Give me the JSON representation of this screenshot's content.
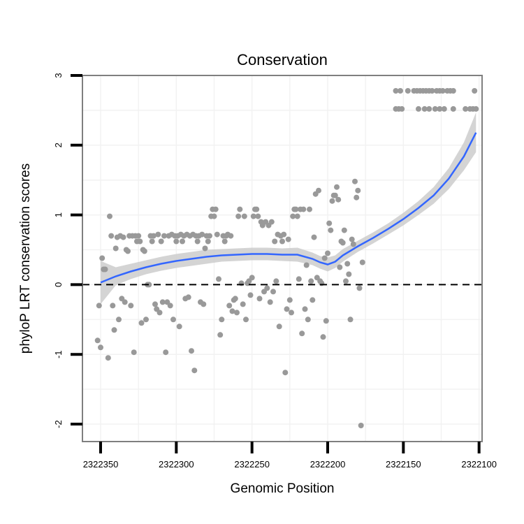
{
  "chart_data": {
    "type": "scatter",
    "title": "Conservation",
    "xlabel": "Genomic Position",
    "ylabel": "phyloP LRT conservation scores",
    "xlim": [
      2322362,
      2322098
    ],
    "ylim": [
      -2.25,
      3.0
    ],
    "x_reversed": true,
    "x_ticks": [
      2322350,
      2322300,
      2322250,
      2322200,
      2322150,
      2322100
    ],
    "x_tick_labels": [
      "2322350",
      "2322300",
      "2322250",
      "2322200",
      "2322150",
      "2322100"
    ],
    "y_ticks": [
      -2,
      -1,
      0,
      1,
      2,
      3
    ],
    "y_tick_labels": [
      "-2",
      "-1",
      "0",
      "1",
      "2",
      "3"
    ],
    "reference_line": {
      "y": 0,
      "style": "dashed"
    },
    "grid": true,
    "colors": {
      "points": "#999999",
      "smooth": "#3366ff",
      "ribbon": "#cccccc",
      "panel_border": "#7f7f7f",
      "grid": "#f2f2f2",
      "reference": "#000000"
    },
    "points": [
      [
        2322352,
        -0.8
      ],
      [
        2322351,
        -0.3
      ],
      [
        2322350,
        -0.9
      ],
      [
        2322349,
        0.38
      ],
      [
        2322348,
        0.22
      ],
      [
        2322347,
        0.22
      ],
      [
        2322345,
        -1.05
      ],
      [
        2322344,
        0.98
      ],
      [
        2322343,
        0.7
      ],
      [
        2322342,
        -0.3
      ],
      [
        2322341,
        -0.65
      ],
      [
        2322340,
        0.52
      ],
      [
        2322339,
        0.68
      ],
      [
        2322338,
        -0.5
      ],
      [
        2322337,
        0.7
      ],
      [
        2322336,
        -0.2
      ],
      [
        2322335,
        0.68
      ],
      [
        2322334,
        -0.25
      ],
      [
        2322333,
        0.5
      ],
      [
        2322332,
        0.48
      ],
      [
        2322331,
        0.7
      ],
      [
        2322330,
        -0.3
      ],
      [
        2322329,
        0.7
      ],
      [
        2322328,
        -0.97
      ],
      [
        2322327,
        0.7
      ],
      [
        2322326,
        0.62
      ],
      [
        2322325,
        0.7
      ],
      [
        2322324,
        0.62
      ],
      [
        2322323,
        -0.55
      ],
      [
        2322322,
        0.5
      ],
      [
        2322321,
        0.48
      ],
      [
        2322320,
        -0.5
      ],
      [
        2322319,
        0.0
      ],
      [
        2322318,
        0.0
      ],
      [
        2322317,
        0.7
      ],
      [
        2322316,
        0.62
      ],
      [
        2322315,
        0.7
      ],
      [
        2322314,
        -0.28
      ],
      [
        2322313,
        -0.35
      ],
      [
        2322312,
        0.72
      ],
      [
        2322311,
        -0.4
      ],
      [
        2322310,
        0.62
      ],
      [
        2322309,
        -0.25
      ],
      [
        2322308,
        0.7
      ],
      [
        2322307,
        -0.97
      ],
      [
        2322306,
        -0.25
      ],
      [
        2322305,
        0.7
      ],
      [
        2322304,
        -0.3
      ],
      [
        2322303,
        0.72
      ],
      [
        2322302,
        -0.5
      ],
      [
        2322301,
        0.7
      ],
      [
        2322300,
        0.62
      ],
      [
        2322299,
        0.7
      ],
      [
        2322298,
        -0.6
      ],
      [
        2322297,
        0.72
      ],
      [
        2322296,
        0.62
      ],
      [
        2322295,
        0.7
      ],
      [
        2322294,
        -0.2
      ],
      [
        2322293,
        0.72
      ],
      [
        2322292,
        -0.18
      ],
      [
        2322291,
        0.7
      ],
      [
        2322290,
        -0.95
      ],
      [
        2322289,
        0.72
      ],
      [
        2322288,
        -1.23
      ],
      [
        2322287,
        0.7
      ],
      [
        2322286,
        0.62
      ],
      [
        2322285,
        0.7
      ],
      [
        2322284,
        -0.25
      ],
      [
        2322283,
        0.72
      ],
      [
        2322282,
        -0.28
      ],
      [
        2322281,
        0.52
      ],
      [
        2322280,
        0.7
      ],
      [
        2322279,
        0.62
      ],
      [
        2322278,
        0.7
      ],
      [
        2322277,
        0.98
      ],
      [
        2322276,
        1.08
      ],
      [
        2322275,
        0.98
      ],
      [
        2322274,
        1.08
      ],
      [
        2322273,
        0.72
      ],
      [
        2322272,
        0.08
      ],
      [
        2322271,
        -0.72
      ],
      [
        2322270,
        -0.5
      ],
      [
        2322269,
        0.7
      ],
      [
        2322268,
        0.62
      ],
      [
        2322267,
        0.7
      ],
      [
        2322266,
        0.72
      ],
      [
        2322265,
        -0.3
      ],
      [
        2322264,
        0.7
      ],
      [
        2322263,
        -0.38
      ],
      [
        2322262,
        -0.22
      ],
      [
        2322261,
        -0.2
      ],
      [
        2322260,
        -0.4
      ],
      [
        2322259,
        0.98
      ],
      [
        2322258,
        1.08
      ],
      [
        2322257,
        0.02
      ],
      [
        2322256,
        -0.28
      ],
      [
        2322255,
        0.98
      ],
      [
        2322254,
        -0.5
      ],
      [
        2322253,
        0.02
      ],
      [
        2322252,
        0.05
      ],
      [
        2322251,
        -0.15
      ],
      [
        2322250,
        0.1
      ],
      [
        2322249,
        0.98
      ],
      [
        2322248,
        1.08
      ],
      [
        2322247,
        1.08
      ],
      [
        2322246,
        0.98
      ],
      [
        2322245,
        -0.2
      ],
      [
        2322244,
        0.9
      ],
      [
        2322243,
        0.85
      ],
      [
        2322242,
        -0.1
      ],
      [
        2322241,
        0.9
      ],
      [
        2322240,
        -0.05
      ],
      [
        2322239,
        0.85
      ],
      [
        2322238,
        -0.25
      ],
      [
        2322237,
        0.9
      ],
      [
        2322236,
        -0.1
      ],
      [
        2322235,
        0.62
      ],
      [
        2322234,
        0.05
      ],
      [
        2322233,
        0.72
      ],
      [
        2322232,
        -0.6
      ],
      [
        2322231,
        0.7
      ],
      [
        2322230,
        0.62
      ],
      [
        2322229,
        0.72
      ],
      [
        2322228,
        -1.26
      ],
      [
        2322227,
        -0.35
      ],
      [
        2322226,
        0.65
      ],
      [
        2322225,
        -0.22
      ],
      [
        2322224,
        -0.4
      ],
      [
        2322223,
        0.98
      ],
      [
        2322222,
        1.08
      ],
      [
        2322221,
        1.08
      ],
      [
        2322220,
        0.98
      ],
      [
        2322219,
        0.08
      ],
      [
        2322218,
        1.08
      ],
      [
        2322217,
        -0.7
      ],
      [
        2322216,
        1.08
      ],
      [
        2322215,
        -0.35
      ],
      [
        2322214,
        0.28
      ],
      [
        2322213,
        -0.5
      ],
      [
        2322212,
        1.08
      ],
      [
        2322211,
        0.05
      ],
      [
        2322210,
        -0.22
      ],
      [
        2322209,
        0.68
      ],
      [
        2322208,
        1.3
      ],
      [
        2322207,
        0.1
      ],
      [
        2322206,
        1.35
      ],
      [
        2322205,
        0.05
      ],
      [
        2322204,
        0.02
      ],
      [
        2322203,
        -0.75
      ],
      [
        2322202,
        0.38
      ],
      [
        2322201,
        -0.52
      ],
      [
        2322200,
        0.45
      ],
      [
        2322199,
        0.88
      ],
      [
        2322198,
        0.78
      ],
      [
        2322197,
        1.2
      ],
      [
        2322196,
        1.28
      ],
      [
        2322195,
        1.28
      ],
      [
        2322194,
        1.4
      ],
      [
        2322193,
        1.22
      ],
      [
        2322192,
        0.25
      ],
      [
        2322191,
        0.62
      ],
      [
        2322190,
        0.6
      ],
      [
        2322189,
        0.78
      ],
      [
        2322188,
        0.05
      ],
      [
        2322187,
        0.3
      ],
      [
        2322186,
        0.15
      ],
      [
        2322185,
        -0.5
      ],
      [
        2322184,
        0.65
      ],
      [
        2322183,
        0.58
      ],
      [
        2322182,
        1.48
      ],
      [
        2322181,
        1.25
      ],
      [
        2322180,
        1.35
      ],
      [
        2322179,
        -0.05
      ],
      [
        2322178,
        -2.02
      ],
      [
        2322177,
        0.32
      ]
    ],
    "points_high_upper": [
      [
        2322155,
        2.78
      ],
      [
        2322152,
        2.78
      ],
      [
        2322147,
        2.78
      ],
      [
        2322143,
        2.78
      ],
      [
        2322141,
        2.78
      ],
      [
        2322139,
        2.78
      ],
      [
        2322137,
        2.78
      ],
      [
        2322135,
        2.78
      ],
      [
        2322133,
        2.78
      ],
      [
        2322131,
        2.78
      ],
      [
        2322128,
        2.78
      ],
      [
        2322126,
        2.78
      ],
      [
        2322124,
        2.78
      ],
      [
        2322121,
        2.78
      ],
      [
        2322119,
        2.78
      ],
      [
        2322117,
        2.78
      ],
      [
        2322103,
        2.78
      ]
    ],
    "points_high_lower": [
      [
        2322155,
        2.52
      ],
      [
        2322153,
        2.52
      ],
      [
        2322151,
        2.52
      ],
      [
        2322140,
        2.52
      ],
      [
        2322136,
        2.52
      ],
      [
        2322133,
        2.52
      ],
      [
        2322129,
        2.52
      ],
      [
        2322126,
        2.52
      ],
      [
        2322123,
        2.52
      ],
      [
        2322117,
        2.52
      ],
      [
        2322109,
        2.52
      ],
      [
        2322106,
        2.52
      ],
      [
        2322104,
        2.52
      ],
      [
        2322102,
        2.52
      ]
    ],
    "smooth": {
      "x": [
        2322350,
        2322340,
        2322330,
        2322320,
        2322310,
        2322300,
        2322290,
        2322280,
        2322270,
        2322260,
        2322250,
        2322240,
        2322230,
        2322220,
        2322210,
        2322205,
        2322200,
        2322195,
        2322190,
        2322180,
        2322170,
        2322160,
        2322150,
        2322140,
        2322130,
        2322120,
        2322110,
        2322102
      ],
      "y": [
        0.03,
        0.12,
        0.19,
        0.25,
        0.3,
        0.34,
        0.37,
        0.4,
        0.42,
        0.43,
        0.44,
        0.44,
        0.43,
        0.43,
        0.37,
        0.32,
        0.29,
        0.33,
        0.42,
        0.55,
        0.67,
        0.8,
        0.94,
        1.1,
        1.28,
        1.52,
        1.84,
        2.18
      ],
      "lower": [
        -0.28,
        -0.01,
        0.08,
        0.15,
        0.2,
        0.24,
        0.27,
        0.3,
        0.33,
        0.34,
        0.35,
        0.35,
        0.34,
        0.33,
        0.28,
        0.23,
        0.19,
        0.24,
        0.33,
        0.47,
        0.59,
        0.72,
        0.85,
        1.0,
        1.16,
        1.37,
        1.64,
        1.9
      ],
      "upper": [
        0.34,
        0.25,
        0.3,
        0.35,
        0.4,
        0.44,
        0.47,
        0.5,
        0.51,
        0.52,
        0.53,
        0.53,
        0.52,
        0.53,
        0.46,
        0.41,
        0.39,
        0.42,
        0.51,
        0.63,
        0.75,
        0.88,
        1.03,
        1.2,
        1.4,
        1.67,
        2.04,
        2.47
      ]
    }
  }
}
